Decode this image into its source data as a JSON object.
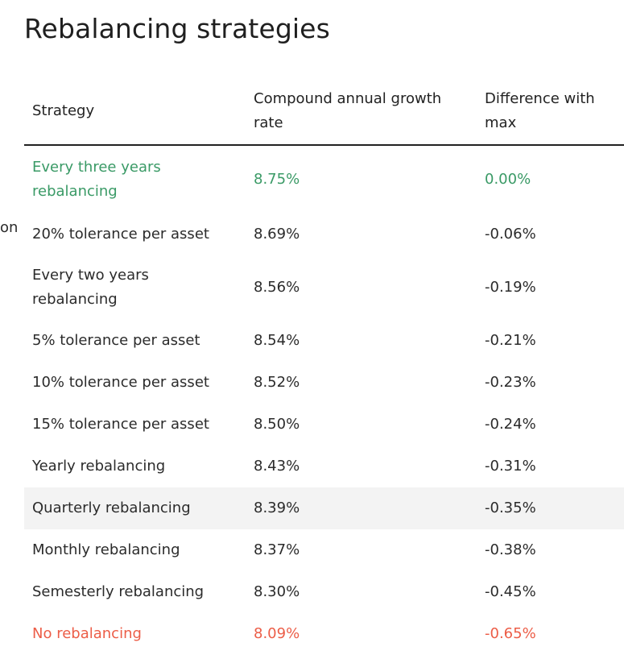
{
  "title": "Rebalancing strategies",
  "side_fragment": "on",
  "table": {
    "headers": [
      "Strategy",
      "Compound annual growth rate",
      "Difference with max"
    ],
    "rows": [
      {
        "strategy": "Every three years rebalancing",
        "cagr": "8.75%",
        "diff": "0.00%"
      },
      {
        "strategy": "20% tolerance per asset",
        "cagr": "8.69%",
        "diff": "-0.06%"
      },
      {
        "strategy": "Every two years rebalancing",
        "cagr": "8.56%",
        "diff": "-0.19%"
      },
      {
        "strategy": "5% tolerance per asset",
        "cagr": "8.54%",
        "diff": "-0.21%"
      },
      {
        "strategy": "10% tolerance per asset",
        "cagr": "8.52%",
        "diff": "-0.23%"
      },
      {
        "strategy": "15% tolerance per asset",
        "cagr": "8.50%",
        "diff": "-0.24%"
      },
      {
        "strategy": "Yearly rebalancing",
        "cagr": "8.43%",
        "diff": "-0.31%"
      },
      {
        "strategy": "Quarterly rebalancing",
        "cagr": "8.39%",
        "diff": "-0.35%"
      },
      {
        "strategy": "Monthly rebalancing",
        "cagr": "8.37%",
        "diff": "-0.38%"
      },
      {
        "strategy": "Semesterly rebalancing",
        "cagr": "8.30%",
        "diff": "-0.45%"
      },
      {
        "strategy": "No rebalancing",
        "cagr": "8.09%",
        "diff": "-0.65%"
      }
    ]
  },
  "colors": {
    "best": "#3a9a66",
    "worst": "#ec5d47",
    "shaded_row": "#f3f3f3"
  }
}
